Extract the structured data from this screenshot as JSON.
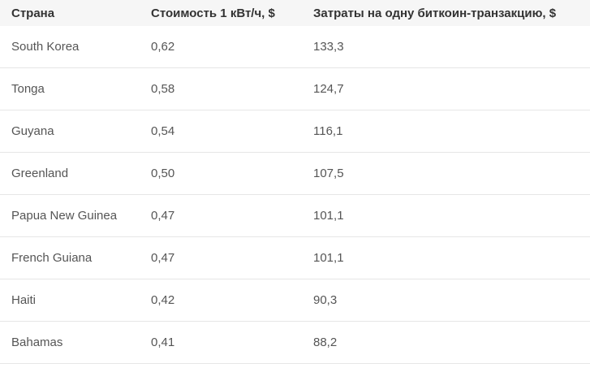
{
  "table": {
    "headers": [
      "Страна",
      "Стоимость 1 кВт/ч, $",
      "Затраты на одну биткоин-транзакцию, $"
    ],
    "rows": [
      [
        "South Korea",
        "0,62",
        "133,3"
      ],
      [
        "Tonga",
        "0,58",
        "124,7"
      ],
      [
        "Guyana",
        "0,54",
        "116,1"
      ],
      [
        "Greenland",
        "0,50",
        "107,5"
      ],
      [
        "Papua New Guinea",
        "0,47",
        "101,1"
      ],
      [
        "French Guiana",
        "0,47",
        "101,1"
      ],
      [
        "Haiti",
        "0,42",
        "90,3"
      ],
      [
        "Bahamas",
        "0,41",
        "88,2"
      ]
    ]
  }
}
